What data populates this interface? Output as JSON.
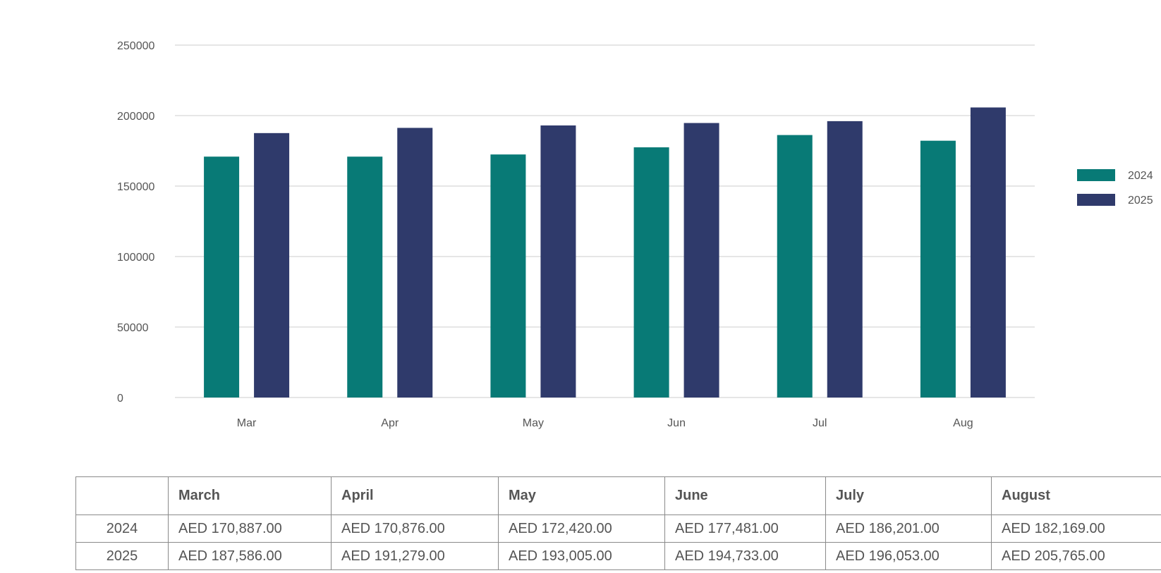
{
  "chart_data": {
    "type": "bar",
    "categories": [
      "Mar",
      "Apr",
      "May",
      "Jun",
      "Jul",
      "Aug"
    ],
    "series": [
      {
        "name": "2024",
        "color": "#087a76",
        "values": [
          170887,
          170876,
          172420,
          177481,
          186201,
          182169
        ]
      },
      {
        "name": "2025",
        "color": "#2f3a6b",
        "values": [
          187586,
          191279,
          193005,
          194733,
          196053,
          205765
        ]
      }
    ],
    "ylim": [
      0,
      250000
    ],
    "yticks": [
      "0",
      "50000",
      "100000",
      "150000",
      "200000",
      "250000"
    ],
    "grid": true,
    "legend_position": "right"
  },
  "table": {
    "headers": [
      "",
      "March",
      "April",
      "May",
      "June",
      "July",
      "August"
    ],
    "rows": [
      {
        "label": "2024",
        "cells": [
          "AED 170,887.00",
          "AED 170,876.00",
          "AED 172,420.00",
          "AED 177,481.00",
          "AED 186,201.00",
          "AED 182,169.00"
        ]
      },
      {
        "label": "2025",
        "cells": [
          "AED 187,586.00",
          "AED 191,279.00",
          "AED 193,005.00",
          "AED 194,733.00",
          "AED 196,053.00",
          "AED 205,765.00"
        ]
      }
    ]
  }
}
